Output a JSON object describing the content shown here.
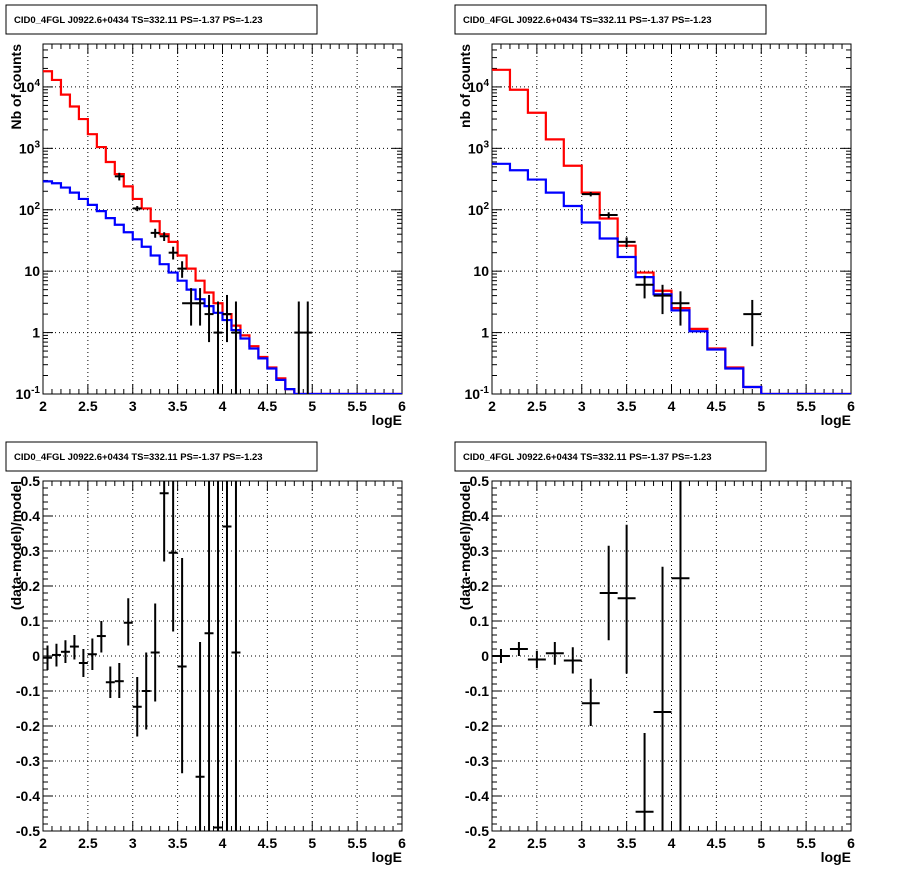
{
  "chart_data": [
    {
      "type": "line",
      "title": "CID0_4FGL J0922.6+0434 TS=332.11 PS=-1.37 PS=-1.23",
      "xlabel": "logE",
      "ylabel": "Nb of counts",
      "xlim": [
        2,
        6
      ],
      "ylim": [
        0.1,
        50000
      ],
      "yscale": "log",
      "grid": true,
      "xticks": [
        "2",
        "2.5",
        "3",
        "3.5",
        "4",
        "4.5",
        "5",
        "5.5",
        "6"
      ],
      "yticks": [
        "10^-1",
        "1",
        "10",
        "10^2",
        "10^3",
        "10^4"
      ],
      "histograms": [
        {
          "color": "#ff0000",
          "bin_edges": [
            2.0,
            2.1,
            2.2,
            2.3,
            2.4,
            2.5,
            2.6,
            2.7,
            2.8,
            2.9,
            3.0,
            3.1,
            3.2,
            3.3,
            3.4,
            3.5,
            3.6,
            3.7,
            3.8,
            3.9,
            4.0,
            4.1,
            4.2,
            4.3,
            4.4,
            4.5,
            4.6,
            4.7,
            4.8,
            4.9,
            5.0,
            5.1,
            5.2,
            5.3,
            5.4,
            5.5,
            5.6,
            5.7,
            5.8,
            5.9,
            6.0
          ],
          "values": [
            18000,
            13000,
            7500,
            4800,
            3000,
            1700,
            1050,
            600,
            380,
            240,
            150,
            105,
            65,
            40,
            30,
            18,
            11,
            7,
            4.5,
            3,
            2,
            1.3,
            0.9,
            0.6,
            0.4,
            0.27,
            0.18,
            0.12,
            0.1,
            0.1,
            0.1,
            0.1,
            0.1,
            0.1,
            0.1,
            0.1,
            0.1,
            0.1,
            0.1,
            0.1
          ]
        },
        {
          "color": "#0000ff",
          "bin_edges": [
            2.0,
            2.1,
            2.2,
            2.3,
            2.4,
            2.5,
            2.6,
            2.7,
            2.8,
            2.9,
            3.0,
            3.1,
            3.2,
            3.3,
            3.4,
            3.5,
            3.6,
            3.7,
            3.8,
            3.9,
            4.0,
            4.1,
            4.2,
            4.3,
            4.4,
            4.5,
            4.6,
            4.7,
            4.8,
            4.9,
            5.0,
            5.1,
            5.2,
            5.3,
            5.4,
            5.5,
            5.6,
            5.7,
            5.8,
            5.9,
            6.0
          ],
          "values": [
            290,
            270,
            230,
            190,
            150,
            120,
            95,
            73,
            57,
            43,
            33,
            25,
            18,
            13,
            9.5,
            7,
            5,
            3.5,
            2.7,
            2.1,
            1.6,
            1.1,
            0.8,
            0.55,
            0.38,
            0.26,
            0.17,
            0.12,
            0.1,
            0.1,
            0.1,
            0.1,
            0.1,
            0.1,
            0.1,
            0.1,
            0.1,
            0.1,
            0.1,
            0.1
          ]
        }
      ],
      "points": [
        {
          "x": 2.85,
          "y": 350,
          "xerr": 0.05,
          "ylo": 300,
          "yhi": 400
        },
        {
          "x": 3.05,
          "y": 105,
          "xerr": 0.05,
          "ylo": 95,
          "yhi": 115
        },
        {
          "x": 3.25,
          "y": 42,
          "xerr": 0.05,
          "ylo": 35,
          "yhi": 49
        },
        {
          "x": 3.35,
          "y": 37,
          "xerr": 0.05,
          "ylo": 31,
          "yhi": 43
        },
        {
          "x": 3.45,
          "y": 20,
          "xerr": 0.05,
          "ylo": 15.5,
          "yhi": 25
        },
        {
          "x": 3.55,
          "y": 11,
          "xerr": 0.05,
          "ylo": 7.8,
          "yhi": 14.5
        },
        {
          "x": 3.65,
          "y": 3,
          "xerr": 0.1,
          "ylo": 1.3,
          "yhi": 5.3
        },
        {
          "x": 3.75,
          "y": 3,
          "xerr": 0.05,
          "ylo": 1.3,
          "yhi": 5.3
        },
        {
          "x": 3.85,
          "y": 2,
          "xerr": 0.05,
          "ylo": 0.7,
          "yhi": 4.1
        },
        {
          "x": 3.95,
          "y": 1,
          "xerr": 0.05,
          "ylo": 0.1,
          "yhi": 3.2
        },
        {
          "x": 4.05,
          "y": 2,
          "xerr": 0.05,
          "ylo": 0.7,
          "yhi": 4.1
        },
        {
          "x": 4.15,
          "y": 1,
          "xerr": 0.05,
          "ylo": 0.1,
          "yhi": 3.2
        },
        {
          "x": 4.85,
          "y": 1,
          "xerr": 0.05,
          "ylo": 0.1,
          "yhi": 3.2
        },
        {
          "x": 4.95,
          "y": 1,
          "xerr": 0.05,
          "ylo": 0.1,
          "yhi": 3.2
        }
      ]
    },
    {
      "type": "line",
      "title": "CID0_4FGL J0922.6+0434 TS=332.11 PS=-1.37 PS=-1.23",
      "xlabel": "logE",
      "ylabel": "nb of counts",
      "xlim": [
        2,
        6
      ],
      "ylim": [
        0.1,
        50000
      ],
      "yscale": "log",
      "grid": true,
      "xticks": [
        "2",
        "2.5",
        "3",
        "3.5",
        "4",
        "4.5",
        "5",
        "5.5",
        "6"
      ],
      "yticks": [
        "10^-1",
        "1",
        "10",
        "10^2",
        "10^3",
        "10^4"
      ],
      "histograms": [
        {
          "color": "#ff0000",
          "bin_edges": [
            2.0,
            2.2,
            2.4,
            2.6,
            2.8,
            3.0,
            3.2,
            3.4,
            3.6,
            3.8,
            4.0,
            4.2,
            4.4,
            4.6,
            4.8,
            5.0,
            5.2,
            5.4,
            5.6,
            5.8,
            6.0
          ],
          "values": [
            19000,
            9000,
            3800,
            1400,
            520,
            190,
            72,
            26,
            9.5,
            4.8,
            2.5,
            1.15,
            0.55,
            0.27,
            0.13,
            0.1,
            0.1,
            0.1,
            0.1,
            0.1
          ]
        },
        {
          "color": "#0000ff",
          "bin_edges": [
            2.0,
            2.2,
            2.4,
            2.6,
            2.8,
            3.0,
            3.2,
            3.4,
            3.6,
            3.8,
            4.0,
            4.2,
            4.4,
            4.6,
            4.8,
            5.0,
            5.2,
            5.4,
            5.6,
            5.8,
            6.0
          ],
          "values": [
            560,
            440,
            310,
            190,
            115,
            62,
            34,
            17,
            8,
            4.2,
            2.3,
            1.05,
            0.53,
            0.26,
            0.13,
            0.1,
            0.1,
            0.1,
            0.1,
            0.1
          ]
        }
      ],
      "points": [
        {
          "x": 3.1,
          "y": 180,
          "xerr": 0.1,
          "ylo": 165,
          "yhi": 195
        },
        {
          "x": 3.3,
          "y": 82,
          "xerr": 0.1,
          "ylo": 73,
          "yhi": 91
        },
        {
          "x": 3.5,
          "y": 30,
          "xerr": 0.1,
          "ylo": 24.5,
          "yhi": 35.5
        },
        {
          "x": 3.7,
          "y": 6,
          "xerr": 0.1,
          "ylo": 3.6,
          "yhi": 8.4
        },
        {
          "x": 3.9,
          "y": 4,
          "xerr": 0.1,
          "ylo": 2.0,
          "yhi": 6.0
        },
        {
          "x": 4.1,
          "y": 3,
          "xerr": 0.1,
          "ylo": 1.3,
          "yhi": 4.7
        },
        {
          "x": 4.9,
          "y": 2,
          "xerr": 0.1,
          "ylo": 0.6,
          "yhi": 3.4
        }
      ]
    },
    {
      "type": "scatter",
      "title": "CID0_4FGL J0922.6+0434 TS=332.11 PS=-1.37 PS=-1.23",
      "xlabel": "logE",
      "ylabel": "(data-model)/model",
      "xlim": [
        2,
        6
      ],
      "ylim": [
        -0.5,
        0.5
      ],
      "grid": true,
      "xticks": [
        "2",
        "2.5",
        "3",
        "3.5",
        "4",
        "4.5",
        "5",
        "5.5",
        "6"
      ],
      "yticks": [
        "-0.5",
        "-0.4",
        "-0.3",
        "-0.2",
        "-0.1",
        "0",
        "0.1",
        "0.2",
        "0.3",
        "0.4",
        "0.5"
      ],
      "points": [
        {
          "x": 2.05,
          "y": -0.005,
          "xerr": 0.05,
          "ylo": -0.04,
          "yhi": 0.03
        },
        {
          "x": 2.15,
          "y": 0.003,
          "xerr": 0.05,
          "ylo": -0.03,
          "yhi": 0.035
        },
        {
          "x": 2.25,
          "y": 0.012,
          "xerr": 0.05,
          "ylo": -0.02,
          "yhi": 0.045
        },
        {
          "x": 2.35,
          "y": 0.027,
          "xerr": 0.05,
          "ylo": -0.01,
          "yhi": 0.06
        },
        {
          "x": 2.45,
          "y": -0.02,
          "xerr": 0.05,
          "ylo": -0.06,
          "yhi": 0.02
        },
        {
          "x": 2.55,
          "y": 0.005,
          "xerr": 0.05,
          "ylo": -0.04,
          "yhi": 0.05
        },
        {
          "x": 2.65,
          "y": 0.057,
          "xerr": 0.05,
          "ylo": 0.01,
          "yhi": 0.1
        },
        {
          "x": 2.75,
          "y": -0.075,
          "xerr": 0.05,
          "ylo": -0.12,
          "yhi": -0.03
        },
        {
          "x": 2.85,
          "y": -0.072,
          "xerr": 0.05,
          "ylo": -0.12,
          "yhi": -0.02
        },
        {
          "x": 2.95,
          "y": 0.095,
          "xerr": 0.05,
          "ylo": 0.03,
          "yhi": 0.165
        },
        {
          "x": 3.05,
          "y": -0.145,
          "xerr": 0.05,
          "ylo": -0.23,
          "yhi": -0.06
        },
        {
          "x": 3.15,
          "y": -0.1,
          "xerr": 0.05,
          "ylo": -0.21,
          "yhi": 0.01
        },
        {
          "x": 3.25,
          "y": 0.01,
          "xerr": 0.05,
          "ylo": -0.13,
          "yhi": 0.15
        },
        {
          "x": 3.35,
          "y": 0.465,
          "xerr": 0.05,
          "ylo": 0.27,
          "yhi": 0.5
        },
        {
          "x": 3.45,
          "y": 0.295,
          "xerr": 0.05,
          "ylo": 0.07,
          "yhi": 0.5
        },
        {
          "x": 3.55,
          "y": -0.03,
          "xerr": 0.05,
          "ylo": -0.335,
          "yhi": 0.28
        },
        {
          "x": 3.75,
          "y": -0.345,
          "xerr": 0.05,
          "ylo": -0.5,
          "yhi": 0.04
        },
        {
          "x": 3.85,
          "y": 0.065,
          "xerr": 0.05,
          "ylo": -0.5,
          "yhi": 0.5
        },
        {
          "x": 3.95,
          "y": -0.49,
          "xerr": 0.05,
          "ylo": -0.5,
          "yhi": 0.5
        },
        {
          "x": 4.05,
          "y": 0.37,
          "xerr": 0.05,
          "ylo": -0.5,
          "yhi": 0.5
        },
        {
          "x": 4.15,
          "y": 0.01,
          "xerr": 0.05,
          "ylo": -0.5,
          "yhi": 0.5
        }
      ]
    },
    {
      "type": "scatter",
      "title": "CID0_4FGL J0922.6+0434 TS=332.11 PS=-1.37 PS=-1.23",
      "xlabel": "logE",
      "ylabel": "(data-model)/model",
      "xlim": [
        2,
        6
      ],
      "ylim": [
        -0.5,
        0.5
      ],
      "grid": true,
      "xticks": [
        "2",
        "2.5",
        "3",
        "3.5",
        "4",
        "4.5",
        "5",
        "5.5",
        "6"
      ],
      "yticks": [
        "-0.5",
        "-0.4",
        "-0.3",
        "-0.2",
        "-0.1",
        "0",
        "0.1",
        "0.2",
        "0.3",
        "0.4",
        "0.5"
      ],
      "points": [
        {
          "x": 2.1,
          "y": 0.0,
          "xerr": 0.1,
          "ylo": -0.02,
          "yhi": 0.02
        },
        {
          "x": 2.3,
          "y": 0.02,
          "xerr": 0.1,
          "ylo": 0.0,
          "yhi": 0.04
        },
        {
          "x": 2.5,
          "y": -0.01,
          "xerr": 0.1,
          "ylo": -0.035,
          "yhi": 0.015
        },
        {
          "x": 2.7,
          "y": 0.008,
          "xerr": 0.1,
          "ylo": -0.025,
          "yhi": 0.04
        },
        {
          "x": 2.9,
          "y": -0.013,
          "xerr": 0.1,
          "ylo": -0.05,
          "yhi": 0.025
        },
        {
          "x": 3.1,
          "y": -0.135,
          "xerr": 0.1,
          "ylo": -0.2,
          "yhi": -0.065
        },
        {
          "x": 3.3,
          "y": 0.18,
          "xerr": 0.1,
          "ylo": 0.045,
          "yhi": 0.315
        },
        {
          "x": 3.5,
          "y": 0.165,
          "xerr": 0.1,
          "ylo": -0.05,
          "yhi": 0.375
        },
        {
          "x": 3.7,
          "y": -0.445,
          "xerr": 0.1,
          "ylo": -0.5,
          "yhi": -0.22
        },
        {
          "x": 3.9,
          "y": -0.16,
          "xerr": 0.1,
          "ylo": -0.5,
          "yhi": 0.255
        },
        {
          "x": 4.1,
          "y": 0.222,
          "xerr": 0.1,
          "ylo": -0.5,
          "yhi": 0.5
        }
      ]
    }
  ]
}
